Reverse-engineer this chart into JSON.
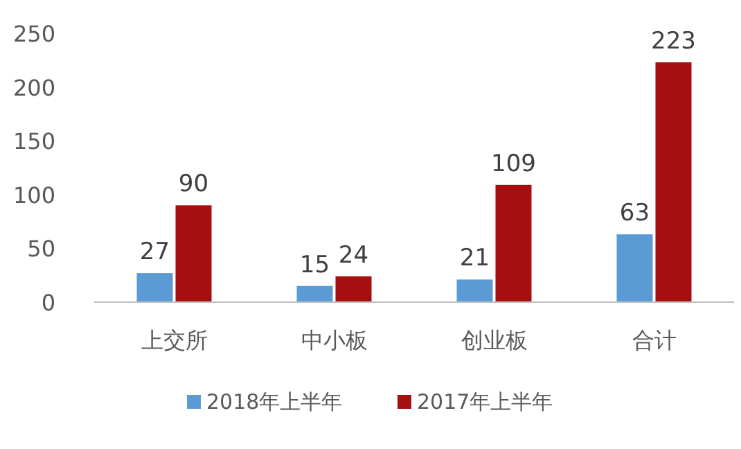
{
  "chart_data": {
    "type": "bar",
    "categories": [
      "上交所",
      "中小板",
      "创业板",
      "合计"
    ],
    "series": [
      {
        "name": "2018年上半年",
        "color": "#5b9bd5",
        "values": [
          27,
          15,
          21,
          63
        ]
      },
      {
        "name": "2017年上半年",
        "color": "#a50f0f",
        "values": [
          90,
          24,
          109,
          223
        ]
      }
    ],
    "ylim": [
      0,
      250
    ],
    "yticks": [
      0,
      50,
      100,
      150,
      200,
      250
    ],
    "data_labels": true,
    "legend": "bottom"
  }
}
